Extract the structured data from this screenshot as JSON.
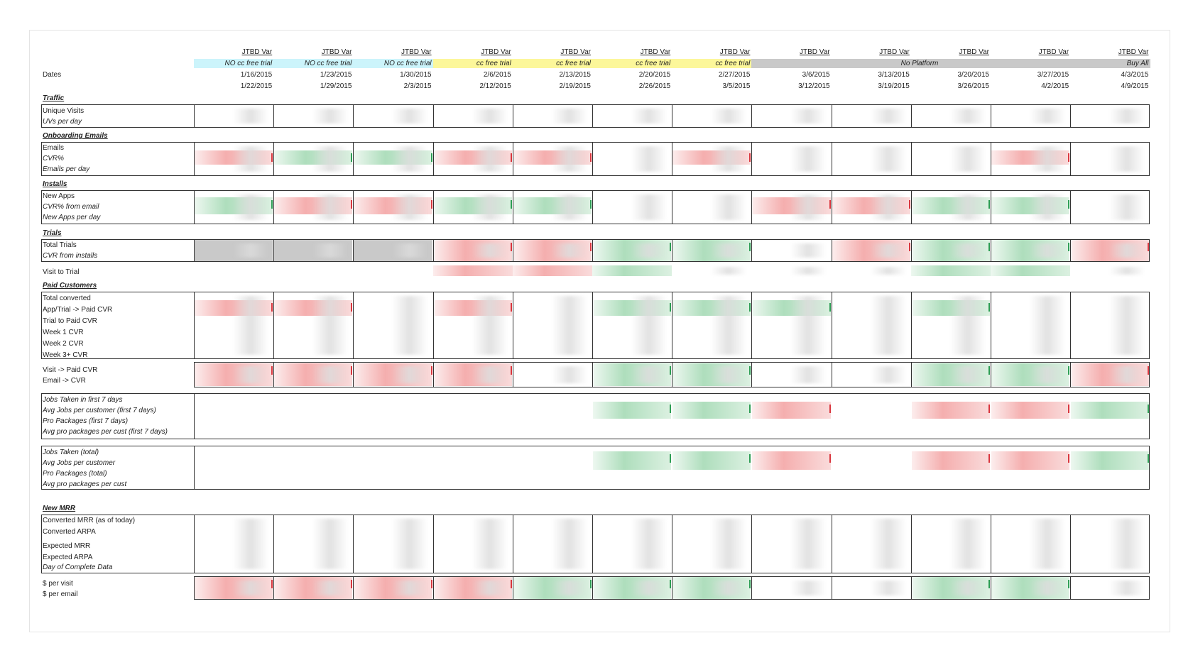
{
  "dates_label": "Dates",
  "columns": [
    {
      "var": "JTBD Var",
      "group": "NO cc free trial",
      "start": "1/16/2015",
      "end": "1/22/2015"
    },
    {
      "var": "JTBD Var",
      "group": "NO cc free trial",
      "start": "1/23/2015",
      "end": "1/29/2015"
    },
    {
      "var": "JTBD Var",
      "group": "NO cc free trial",
      "start": "1/30/2015",
      "end": "2/3/2015"
    },
    {
      "var": "JTBD Var",
      "group": "cc free trial",
      "start": "2/6/2015",
      "end": "2/12/2015"
    },
    {
      "var": "JTBD Var",
      "group": "cc free trial",
      "start": "2/13/2015",
      "end": "2/19/2015"
    },
    {
      "var": "JTBD Var",
      "group": "cc free trial",
      "start": "2/20/2015",
      "end": "2/26/2015"
    },
    {
      "var": "JTBD Var",
      "group": "cc free trial",
      "start": "2/27/2015",
      "end": "3/5/2015"
    },
    {
      "var": "JTBD Var",
      "group": "",
      "start": "3/6/2015",
      "end": "3/12/2015"
    },
    {
      "var": "JTBD Var",
      "group": "No Platform",
      "start": "3/13/2015",
      "end": "3/19/2015"
    },
    {
      "var": "JTBD Var",
      "group": "",
      "start": "3/20/2015",
      "end": "3/26/2015"
    },
    {
      "var": "JTBD Var",
      "group": "",
      "start": "3/27/2015",
      "end": "4/2/2015"
    },
    {
      "var": "JTBD Var",
      "group": "Buy All",
      "start": "4/3/2015",
      "end": "4/9/2015"
    }
  ],
  "colors": {
    "cyan": "#ccf4fb",
    "yellow": "#fcf79a",
    "grey": "#c9c9c9",
    "red": "#f4b8b8",
    "green": "#b9e2c4",
    "border": "#333333"
  },
  "sections": {
    "traffic": {
      "title": "Traffic",
      "rows": [
        "Unique Visits",
        "UVs per day"
      ]
    },
    "emails": {
      "title": "Onboarding Emails",
      "rows": [
        "Emails",
        "CVR%",
        "Emails per day"
      ]
    },
    "installs": {
      "title": "Installs",
      "rows": [
        "New Apps",
        "CVR% from email",
        "New Apps per day"
      ]
    },
    "trials": {
      "title": "Trials",
      "rows": [
        "Total Trials",
        "CVR from installs"
      ],
      "extra": "Visit to Trial"
    },
    "paid": {
      "title": "Paid Customers",
      "rows": [
        "Total converted",
        "App/Trial -> Paid CVR",
        "Trial to Paid CVR",
        "Week 1 CVR",
        "Week 2 CVR",
        "Week 3+ CVR"
      ],
      "extra": [
        "Visit -> Paid CVR",
        "Email -> CVR"
      ]
    },
    "jobs7": {
      "rows": [
        "Jobs Taken in first 7 days",
        "Avg Jobs per customer (first 7 days)",
        "Pro Packages (first 7 days)",
        "Avg pro packages per cust (first 7 days)"
      ]
    },
    "jobsTotal": {
      "rows": [
        "Jobs Taken (total)",
        "Avg Jobs per customer",
        "Pro Packages (total)",
        "Avg pro packages per cust"
      ]
    },
    "mrr": {
      "title": "New MRR",
      "rows": [
        "Converted MRR (as of today)",
        "Converted ARPA",
        "Expected MRR",
        "Expected ARPA",
        "Day of Complete Data"
      ],
      "extra": [
        "$ per visit",
        "$ per email"
      ]
    }
  },
  "cell_fills": {
    "emails": [
      "r",
      "g",
      "g",
      "r",
      "r",
      "n",
      "r",
      "n",
      "n",
      "n",
      "r",
      "n"
    ],
    "installs": [
      "g",
      "r",
      "r",
      "g",
      "g",
      "n",
      "n",
      "r",
      "r",
      "g",
      "g",
      "n"
    ],
    "trials": [
      "x",
      "x",
      "x",
      "r",
      "r",
      "g",
      "g",
      "n",
      "r",
      "g",
      "g",
      "r"
    ],
    "visit_to_trial": [
      "",
      "",
      "",
      "r",
      "r",
      "g",
      "n",
      "n",
      "n",
      "g",
      "g",
      "n"
    ],
    "paid": [
      "r",
      "r",
      "n",
      "r",
      "n",
      "g",
      "g",
      "g",
      "n",
      "g",
      "n",
      "n"
    ],
    "visit_paid": [
      "r",
      "r",
      "r",
      "r",
      "n",
      "g",
      "g",
      "n",
      "n",
      "g",
      "g",
      "r"
    ],
    "jobs7": [
      "",
      "",
      "",
      "",
      "",
      "g",
      "g",
      "r",
      "n",
      "r",
      "r",
      "g"
    ],
    "jobsTotal": [
      "",
      "",
      "",
      "",
      "",
      "g",
      "g",
      "r",
      "n",
      "r",
      "r",
      "g"
    ],
    "per_visit": [
      "r",
      "r",
      "r",
      "r",
      "g",
      "g",
      "g",
      "n",
      "n",
      "g",
      "g",
      "n"
    ]
  }
}
